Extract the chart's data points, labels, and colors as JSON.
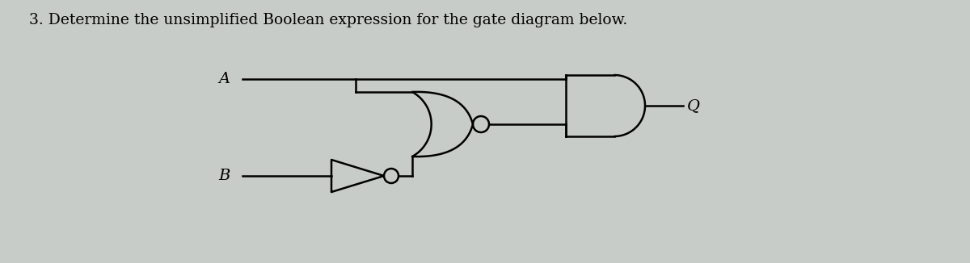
{
  "title": "3. Determine the unsimplified Boolean expression for the gate diagram below.",
  "title_fontsize": 13.5,
  "bg_color": "#c8ccc8",
  "label_A": "A",
  "label_B": "B",
  "label_Q": "Q",
  "lw": 1.8,
  "gate_lw": 1.8
}
